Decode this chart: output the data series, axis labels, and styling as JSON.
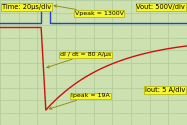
{
  "background_color": "#cde0b0",
  "grid_color": "#b0c898",
  "title_label": "Time: 20µs/div",
  "vout_label": "Vout: 500V/div",
  "iout_label": "Iout: 5 A/div",
  "vpeak_label": "Vpeak = 1300V",
  "didt_label": "dI / dt = 80 A/µs",
  "ipeak_label": "Ipeak = 19A",
  "blue_line_color": "#2244cc",
  "red_line_color": "#cc1111",
  "annotation_bg": "#f5f530",
  "annotation_border": "#b0b000",
  "label_fontsize": 4.8,
  "annotation_fontsize": 4.5,
  "xlim": [
    0,
    10
  ],
  "ylim": [
    -5,
    5
  ],
  "blue_y_level": 3.2,
  "blue_peak_y": 4.6,
  "blue_x_rise": 2.2,
  "blue_x_fall": 2.7,
  "red_y_start": 2.8,
  "red_x_drop": 2.2,
  "red_y_bottom": -3.8,
  "red_recovery_tau": 3.5,
  "red_y_end": 2.0
}
